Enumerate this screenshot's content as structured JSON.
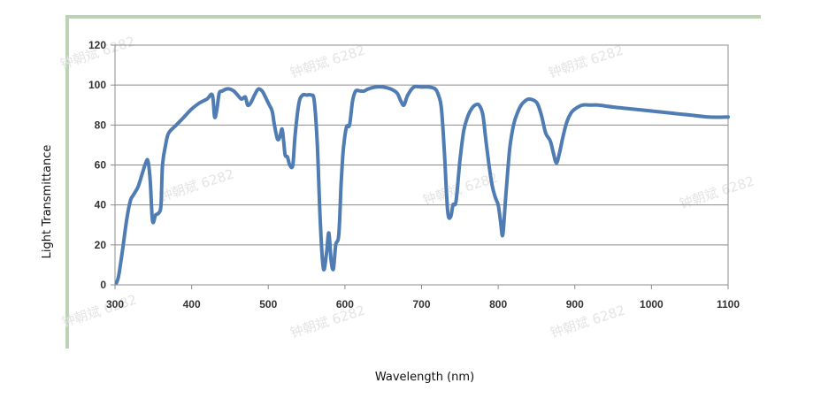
{
  "chart_data": {
    "type": "line",
    "title": "",
    "xlabel": "Wavelength (nm)",
    "ylabel": "Light Transmittance",
    "xlim": [
      300,
      1100
    ],
    "ylim": [
      0,
      120
    ],
    "xticks": [
      300,
      400,
      500,
      600,
      700,
      800,
      900,
      1000,
      1100
    ],
    "yticks": [
      0,
      20,
      40,
      60,
      80,
      100,
      120
    ],
    "grid": true,
    "legend": "none",
    "series_color": "#4f7cb3",
    "frame_color": "#b9d3b3",
    "watermarks": [
      "钟朝斌 6282",
      "钟朝斌 6282",
      "钟朝斌 6282",
      "钟朝斌 6282",
      "钟朝斌 6282",
      "钟朝斌 6282",
      "钟朝斌 6282",
      "钟朝斌 6282"
    ],
    "series": [
      {
        "points": [
          [
            302,
            1
          ],
          [
            305,
            5
          ],
          [
            310,
            18
          ],
          [
            315,
            32
          ],
          [
            320,
            42
          ],
          [
            324,
            45
          ],
          [
            330,
            49
          ],
          [
            335,
            55
          ],
          [
            340,
            61
          ],
          [
            343,
            62
          ],
          [
            346,
            52
          ],
          [
            349,
            32
          ],
          [
            353,
            35
          ],
          [
            357,
            36
          ],
          [
            360,
            40
          ],
          [
            362,
            60
          ],
          [
            366,
            70
          ],
          [
            370,
            76
          ],
          [
            380,
            80
          ],
          [
            390,
            84
          ],
          [
            400,
            88
          ],
          [
            410,
            91
          ],
          [
            420,
            93
          ],
          [
            427,
            95
          ],
          [
            430,
            84
          ],
          [
            433,
            88
          ],
          [
            436,
            96
          ],
          [
            440,
            97
          ],
          [
            445,
            98
          ],
          [
            450,
            98
          ],
          [
            455,
            97
          ],
          [
            460,
            95
          ],
          [
            465,
            93
          ],
          [
            470,
            94
          ],
          [
            473,
            90
          ],
          [
            477,
            91
          ],
          [
            482,
            95
          ],
          [
            487,
            98
          ],
          [
            492,
            97
          ],
          [
            495,
            95
          ],
          [
            500,
            91
          ],
          [
            505,
            87
          ],
          [
            508,
            80
          ],
          [
            512,
            73
          ],
          [
            515,
            74
          ],
          [
            518,
            78
          ],
          [
            520,
            72
          ],
          [
            522,
            65
          ],
          [
            525,
            64
          ],
          [
            528,
            60
          ],
          [
            532,
            60
          ],
          [
            535,
            75
          ],
          [
            540,
            91
          ],
          [
            545,
            95
          ],
          [
            550,
            95
          ],
          [
            556,
            95
          ],
          [
            560,
            92
          ],
          [
            564,
            70
          ],
          [
            568,
            30
          ],
          [
            572,
            8
          ],
          [
            576,
            16
          ],
          [
            579,
            26
          ],
          [
            582,
            12
          ],
          [
            585,
            8
          ],
          [
            588,
            20
          ],
          [
            592,
            25
          ],
          [
            595,
            50
          ],
          [
            598,
            68
          ],
          [
            602,
            79
          ],
          [
            606,
            80
          ],
          [
            610,
            92
          ],
          [
            614,
            97
          ],
          [
            620,
            97
          ],
          [
            625,
            97
          ],
          [
            630,
            98
          ],
          [
            640,
            99
          ],
          [
            650,
            99
          ],
          [
            660,
            98
          ],
          [
            668,
            96
          ],
          [
            673,
            92
          ],
          [
            677,
            90
          ],
          [
            682,
            95
          ],
          [
            690,
            99
          ],
          [
            700,
            99
          ],
          [
            710,
            99
          ],
          [
            718,
            98
          ],
          [
            722,
            95
          ],
          [
            726,
            88
          ],
          [
            730,
            65
          ],
          [
            734,
            37
          ],
          [
            738,
            34
          ],
          [
            741,
            40
          ],
          [
            745,
            42
          ],
          [
            750,
            62
          ],
          [
            755,
            77
          ],
          [
            760,
            84
          ],
          [
            765,
            88
          ],
          [
            770,
            90
          ],
          [
            775,
            90
          ],
          [
            780,
            85
          ],
          [
            784,
            72
          ],
          [
            788,
            60
          ],
          [
            792,
            50
          ],
          [
            796,
            44
          ],
          [
            800,
            40
          ],
          [
            803,
            32
          ],
          [
            806,
            25
          ],
          [
            810,
            45
          ],
          [
            815,
            68
          ],
          [
            820,
            80
          ],
          [
            825,
            86
          ],
          [
            830,
            90
          ],
          [
            835,
            92
          ],
          [
            840,
            93
          ],
          [
            848,
            92
          ],
          [
            852,
            90
          ],
          [
            857,
            84
          ],
          [
            862,
            76
          ],
          [
            868,
            72
          ],
          [
            872,
            66
          ],
          [
            876,
            61
          ],
          [
            880,
            66
          ],
          [
            885,
            75
          ],
          [
            890,
            82
          ],
          [
            895,
            86
          ],
          [
            900,
            88
          ],
          [
            910,
            90
          ],
          [
            920,
            90
          ],
          [
            930,
            90
          ],
          [
            950,
            89
          ],
          [
            975,
            88
          ],
          [
            1000,
            87
          ],
          [
            1025,
            86
          ],
          [
            1050,
            85
          ],
          [
            1075,
            84
          ],
          [
            1100,
            84
          ]
        ]
      }
    ]
  }
}
